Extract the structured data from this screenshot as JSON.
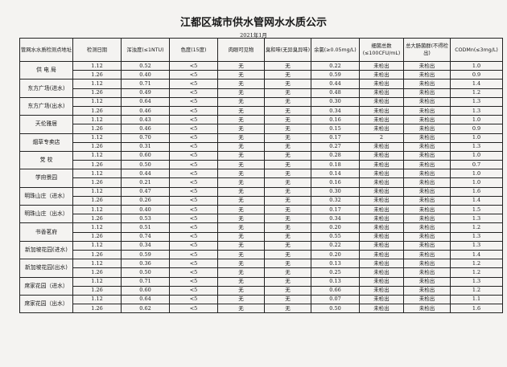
{
  "title": "江都区城市供水管网水水质公示",
  "subtitle": "2021年1月",
  "columns": [
    "管网水水质检测点地址",
    "检测日期",
    "浑浊度(≤1NTU)",
    "色度(15度)",
    "肉眼可见物",
    "臭和味(无异臭异味)",
    "余氯(≥0.05mg/L)",
    "细菌总数(≤100CFU/mL)",
    "总大肠菌群(不得检出)",
    "CODMn(≤3mg/L)"
  ],
  "sites": [
    {
      "name": "供 电 局",
      "rows": [
        [
          "1.12",
          "0.52",
          "<5",
          "无",
          "无",
          "0.22",
          "未检出",
          "未检出",
          "1.0"
        ],
        [
          "1.26",
          "0.40",
          "<5",
          "无",
          "无",
          "0.59",
          "未检出",
          "未检出",
          "0.9"
        ]
      ]
    },
    {
      "name": "东方广场(进水)",
      "rows": [
        [
          "1.12",
          "0.71",
          "<5",
          "无",
          "无",
          "0.44",
          "未检出",
          "未检出",
          "1.4"
        ],
        [
          "1.26",
          "0.49",
          "<5",
          "无",
          "无",
          "0.48",
          "未检出",
          "未检出",
          "1.2"
        ]
      ]
    },
    {
      "name": "东方广场(出水)",
      "rows": [
        [
          "1.12",
          "0.64",
          "<5",
          "无",
          "无",
          "0.30",
          "未检出",
          "未检出",
          "1.3"
        ],
        [
          "1.26",
          "0.46",
          "<5",
          "无",
          "无",
          "0.34",
          "未检出",
          "未检出",
          "1.3"
        ]
      ]
    },
    {
      "name": "天伦雅居",
      "rows": [
        [
          "1.12",
          "0.43",
          "<5",
          "无",
          "无",
          "0.16",
          "未检出",
          "未检出",
          "1.0"
        ],
        [
          "1.26",
          "0.46",
          "<5",
          "无",
          "无",
          "0.15",
          "未检出",
          "未检出",
          "0.9"
        ]
      ]
    },
    {
      "name": "烟草专卖店",
      "rows": [
        [
          "1.12",
          "0.70",
          "<5",
          "无",
          "无",
          "0.17",
          "2",
          "未检出",
          "1.0"
        ],
        [
          "1.26",
          "0.31",
          "<5",
          "无",
          "无",
          "0.27",
          "未检出",
          "未检出",
          "1.3"
        ]
      ]
    },
    {
      "name": "党 校",
      "rows": [
        [
          "1.12",
          "0.60",
          "<5",
          "无",
          "无",
          "0.28",
          "未检出",
          "未检出",
          "1.0"
        ],
        [
          "1.26",
          "0.50",
          "<5",
          "无",
          "无",
          "0.18",
          "未检出",
          "未检出",
          "0.7"
        ]
      ]
    },
    {
      "name": "学府景园",
      "rows": [
        [
          "1.12",
          "0.44",
          "<5",
          "无",
          "无",
          "0.14",
          "未检出",
          "未检出",
          "1.0"
        ],
        [
          "1.26",
          "0.21",
          "<5",
          "无",
          "无",
          "0.16",
          "未检出",
          "未检出",
          "1.0"
        ]
      ]
    },
    {
      "name": "明珠山庄（进水）",
      "rows": [
        [
          "1.12",
          "0.47",
          "<5",
          "无",
          "无",
          "0.30",
          "未检出",
          "未检出",
          "1.6"
        ],
        [
          "1.26",
          "0.26",
          "<5",
          "无",
          "无",
          "0.32",
          "未检出",
          "未检出",
          "1.4"
        ]
      ]
    },
    {
      "name": "明珠山庄（出水）",
      "rows": [
        [
          "1.12",
          "0.40",
          "<5",
          "无",
          "无",
          "0.17",
          "未检出",
          "未检出",
          "1.5"
        ],
        [
          "1.26",
          "0.53",
          "<5",
          "无",
          "无",
          "0.34",
          "未检出",
          "未检出",
          "1.3"
        ]
      ]
    },
    {
      "name": "书香茗府",
      "rows": [
        [
          "1.12",
          "0.51",
          "<5",
          "无",
          "无",
          "0.20",
          "未检出",
          "未检出",
          "1.2"
        ],
        [
          "1.26",
          "0.74",
          "<5",
          "无",
          "无",
          "0.55",
          "未检出",
          "未检出",
          "1.3"
        ]
      ]
    },
    {
      "name": "新加坡花园(进水)",
      "rows": [
        [
          "1.12",
          "0.34",
          "<5",
          "无",
          "无",
          "0.22",
          "未检出",
          "未检出",
          "1.3"
        ],
        [
          "1.26",
          "0.59",
          "<5",
          "无",
          "无",
          "0.20",
          "未检出",
          "未检出",
          "1.4"
        ]
      ]
    },
    {
      "name": "新加坡花园(出水)",
      "rows": [
        [
          "1.12",
          "0.36",
          "<5",
          "无",
          "无",
          "0.13",
          "未检出",
          "未检出",
          "1.2"
        ],
        [
          "1.26",
          "0.50",
          "<5",
          "无",
          "无",
          "0.25",
          "未检出",
          "未检出",
          "1.2"
        ]
      ]
    },
    {
      "name": "席家花园（进水）",
      "rows": [
        [
          "1.12",
          "0.71",
          "<5",
          "无",
          "无",
          "0.13",
          "未检出",
          "未检出",
          "1.3"
        ],
        [
          "1.26",
          "0.60",
          "<5",
          "无",
          "无",
          "0.66",
          "未检出",
          "未检出",
          "1.2"
        ]
      ]
    },
    {
      "name": "席家花园（出水）",
      "rows": [
        [
          "1.12",
          "0.64",
          "<5",
          "无",
          "无",
          "0.07",
          "未检出",
          "未检出",
          "1.1"
        ],
        [
          "1.26",
          "0.62",
          "<5",
          "无",
          "无",
          "0.50",
          "未检出",
          "未检出",
          "1.6"
        ]
      ]
    }
  ]
}
